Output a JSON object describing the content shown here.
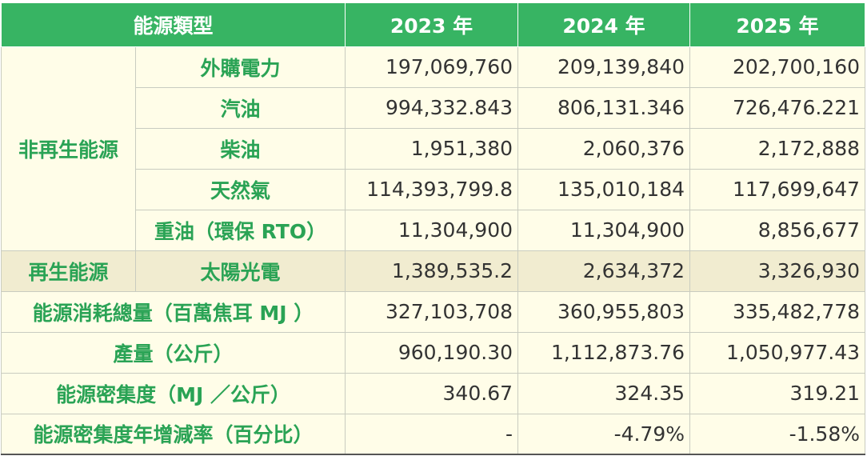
{
  "header": {
    "type": "能源類型",
    "years": [
      "2023 年",
      "2024 年",
      "2025 年"
    ]
  },
  "groups": {
    "non_renewable": "非再生能源",
    "renewable": "再生能源"
  },
  "rows": [
    {
      "label": "外購電力",
      "values": [
        "197,069,760",
        "209,139,840",
        "202,700,160"
      ]
    },
    {
      "label": "汽油",
      "values": [
        "994,332.843",
        "806,131.346",
        "726,476.221"
      ]
    },
    {
      "label": "柴油",
      "values": [
        "1,951,380",
        "2,060,376",
        "2,172,888"
      ]
    },
    {
      "label": "天然氣",
      "values": [
        "114,393,799.8",
        "135,010,184",
        "117,699,647"
      ]
    },
    {
      "label": "重油（環保 RTO）",
      "values": [
        "11,304,900",
        "11,304,900",
        "8,856,677"
      ]
    },
    {
      "label": "太陽光電",
      "values": [
        "1,389,535.2",
        "2,634,372",
        "3,326,930"
      ]
    }
  ],
  "summary": [
    {
      "label": "能源消耗總量（百萬焦耳 MJ ）",
      "values": [
        "327,103,708",
        "360,955,803",
        "335,482,778"
      ]
    },
    {
      "label": "產量（公斤）",
      "values": [
        "960,190.30",
        "1,112,873.76",
        "1,050,977.43"
      ]
    },
    {
      "label": "能源密集度（MJ ／公斤）",
      "values": [
        "340.67",
        "324.35",
        "319.21"
      ]
    },
    {
      "label": "能源密集度年增減率（百分比）",
      "values": [
        "-",
        "-4.79%",
        "-1.58%"
      ]
    }
  ]
}
